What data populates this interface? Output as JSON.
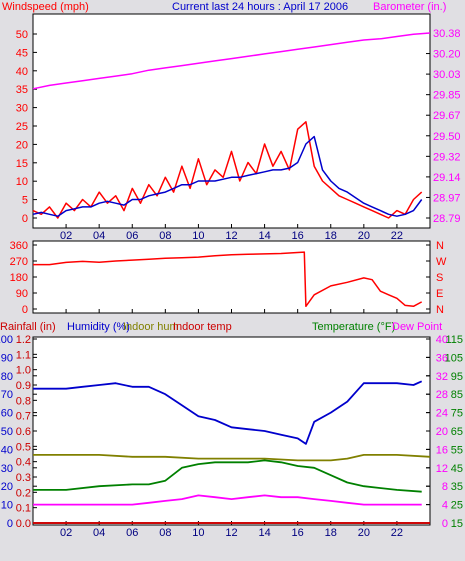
{
  "header": {
    "left_label": "Windspeed (mph)",
    "title": "Current last 24 hours : April 17 2006",
    "right_label": "Barometer (in.)"
  },
  "bottom_header": {
    "rainfall": "Rainfall (in)",
    "humidity": "Humidity (%)",
    "indoor_hum": "Indoor hum",
    "indoor_temp": "Indoor temp",
    "temperature": "Temperature (°F)",
    "dew_point": "Dew Point"
  },
  "colors": {
    "background": "#e0dfe3",
    "plot_bg": "#ffffff",
    "wind_gust": "#ff0000",
    "wind_avg": "#0000cc",
    "barometer": "#ff00ff",
    "direction": "#ff0000",
    "humidity": "#0000cc",
    "indoor_hum": "#808000",
    "indoor_temp": "#cc0000",
    "temperature": "#008000",
    "dew_point": "#ff00ff",
    "rainfall": "#cc0000"
  },
  "chart_data": [
    {
      "type": "line",
      "name": "wind-barometer",
      "x_ticks": [
        "02",
        "04",
        "06",
        "08",
        "10",
        "12",
        "14",
        "16",
        "18",
        "20",
        "22"
      ],
      "xlim": [
        0,
        24
      ],
      "left_axis": {
        "label": "Windspeed (mph)",
        "ylim": [
          0,
          50
        ],
        "ticks": [
          "0",
          "5",
          "10",
          "15",
          "20",
          "25",
          "30",
          "35",
          "40",
          "45",
          "50"
        ]
      },
      "right_axis": {
        "label": "Barometer (in.)",
        "ylim": [
          28.79,
          30.38
        ],
        "ticks": [
          "28.79",
          "28.97",
          "29.14",
          "29.32",
          "29.50",
          "29.67",
          "29.85",
          "30.03",
          "30.20",
          "30.38"
        ]
      },
      "series": [
        {
          "name": "Windspeed (mph)",
          "axis": "left",
          "color": "#ff0000",
          "x": [
            0,
            0.5,
            1,
            1.5,
            2,
            2.5,
            3,
            3.5,
            4,
            4.5,
            5,
            5.5,
            6,
            6.5,
            7,
            7.5,
            8,
            8.5,
            9,
            9.5,
            10,
            10.5,
            11,
            11.5,
            12,
            12.5,
            13,
            13.5,
            14,
            14.5,
            15,
            15.5,
            16,
            16.5,
            17,
            17.5,
            18,
            18.5,
            19,
            19.5,
            20,
            20.5,
            21,
            21.5,
            22,
            22.5,
            23,
            23.5
          ],
          "y": [
            2,
            1,
            3,
            0,
            4,
            2,
            5,
            3,
            7,
            4,
            6,
            2,
            8,
            4,
            9,
            6,
            11,
            7,
            14,
            8,
            16,
            9,
            13,
            11,
            18,
            10,
            15,
            12,
            20,
            14,
            18,
            13,
            24,
            26,
            14,
            10,
            8,
            6,
            5,
            4,
            3,
            2,
            1,
            0,
            2,
            1,
            5,
            7
          ]
        },
        {
          "name": "Wind average",
          "axis": "left",
          "color": "#0000cc",
          "x": [
            0,
            0.5,
            1,
            1.5,
            2,
            2.5,
            3,
            3.5,
            4,
            4.5,
            5,
            5.5,
            6,
            6.5,
            7,
            7.5,
            8,
            8.5,
            9,
            9.5,
            10,
            10.5,
            11,
            11.5,
            12,
            12.5,
            13,
            13.5,
            14,
            14.5,
            15,
            15.5,
            16,
            16.5,
            17,
            17.5,
            18,
            18.5,
            19,
            19.5,
            20,
            20.5,
            21,
            21.5,
            22,
            22.5,
            23,
            23.5
          ],
          "y": [
            1,
            1.5,
            1,
            0.5,
            2,
            2.5,
            3,
            3,
            4,
            4.5,
            4,
            3.5,
            5,
            5,
            6,
            6.5,
            7,
            8,
            9,
            9,
            10,
            10,
            10,
            10.5,
            11,
            11,
            11.5,
            12,
            12.5,
            13,
            13,
            13.5,
            15,
            20,
            22,
            13,
            10,
            8,
            7,
            5.5,
            4,
            3,
            2,
            1,
            0.5,
            1,
            2,
            5
          ]
        },
        {
          "name": "Barometer (in.)",
          "axis": "right",
          "color": "#ff00ff",
          "x": [
            0,
            1,
            2,
            3,
            4,
            5,
            6,
            7,
            8,
            9,
            10,
            11,
            12,
            13,
            14,
            15,
            16,
            17,
            18,
            19,
            20,
            21,
            22,
            23,
            24
          ],
          "y": [
            29.9,
            29.93,
            29.95,
            29.97,
            29.99,
            30.01,
            30.03,
            30.06,
            30.08,
            30.1,
            30.12,
            30.14,
            30.16,
            30.18,
            30.2,
            30.22,
            30.24,
            30.26,
            30.28,
            30.3,
            30.32,
            30.33,
            30.35,
            30.37,
            30.38
          ]
        }
      ]
    },
    {
      "type": "line",
      "name": "wind-direction",
      "xlim": [
        0,
        24
      ],
      "left_axis": {
        "ylim": [
          0,
          360
        ],
        "ticks": [
          "0",
          "90",
          "180",
          "270",
          "360"
        ]
      },
      "right_axis": {
        "ticks": [
          "N",
          "E",
          "S",
          "W",
          "N"
        ]
      },
      "series": [
        {
          "name": "Wind direction",
          "color": "#ff0000",
          "x": [
            0,
            1,
            2,
            3,
            4,
            5,
            6,
            7,
            8,
            9,
            10,
            11,
            12,
            13,
            14,
            15,
            16,
            16.4,
            16.5,
            17,
            18,
            19,
            20,
            20.5,
            21,
            21.5,
            22,
            22.5,
            23,
            23.5
          ],
          "y": [
            250,
            250,
            262,
            268,
            263,
            270,
            275,
            280,
            285,
            288,
            292,
            300,
            305,
            308,
            310,
            312,
            318,
            320,
            15,
            80,
            130,
            150,
            175,
            165,
            100,
            80,
            60,
            20,
            15,
            40
          ]
        }
      ]
    },
    {
      "type": "line",
      "name": "humidity-temperature",
      "xlim": [
        0,
        24
      ],
      "axes": {
        "rainfall": {
          "label": "Rainfall (in)",
          "ylim": [
            0,
            1.2
          ],
          "ticks": [
            "0.0",
            "0.1",
            "0.2",
            "0.3",
            "0.4",
            "0.5",
            "0.6",
            "0.7",
            "0.8",
            "0.9",
            "1.0",
            "1.1",
            "1.2"
          ]
        },
        "humidity": {
          "label": "Humidity (%)",
          "ylim": [
            0,
            100
          ],
          "ticks": [
            "0",
            "10",
            "20",
            "30",
            "40",
            "50",
            "60",
            "70",
            "80",
            "90",
            "100"
          ]
        },
        "dew_point": {
          "label": "Dew Point",
          "ylim": [
            0,
            40
          ],
          "ticks": [
            "0",
            "4",
            "8",
            "12",
            "16",
            "20",
            "24",
            "28",
            "32",
            "36",
            "40"
          ]
        },
        "temperature": {
          "label": "Temperature (°F)",
          "ylim": [
            15,
            115
          ],
          "ticks": [
            "15",
            "25",
            "35",
            "45",
            "55",
            "65",
            "75",
            "85",
            "95",
            "105",
            "115"
          ]
        }
      },
      "series": [
        {
          "name": "Humidity (%)",
          "axis": "humidity",
          "color": "#0000cc",
          "x": [
            0,
            1,
            2,
            3,
            4,
            5,
            6,
            7,
            8,
            9,
            10,
            11,
            12,
            13,
            14,
            15,
            16,
            16.5,
            17,
            18,
            19,
            20,
            21,
            22,
            23,
            23.5
          ],
          "y": [
            73,
            73,
            73,
            74,
            75,
            76,
            74,
            74,
            70,
            64,
            58,
            56,
            52,
            51,
            50,
            48,
            46,
            43,
            55,
            60,
            66,
            76,
            76,
            76,
            75,
            77
          ]
        },
        {
          "name": "Indoor hum",
          "axis": "humidity",
          "color": "#808000",
          "x": [
            0,
            2,
            4,
            6,
            8,
            10,
            12,
            14,
            16,
            18,
            19,
            20,
            22,
            24
          ],
          "y": [
            37,
            37,
            37,
            36,
            36,
            35,
            35,
            35,
            34,
            34,
            35,
            37,
            37,
            36
          ]
        },
        {
          "name": "Temperature (°F)",
          "axis": "humidity",
          "color": "#008000",
          "x": [
            0,
            2,
            4,
            6,
            7,
            8,
            9,
            10,
            11,
            12,
            13,
            14,
            15,
            16,
            17,
            18,
            19,
            20,
            22,
            23.5
          ],
          "y": [
            18,
            18,
            20,
            21,
            21,
            23,
            30,
            32,
            33,
            33,
            33,
            34,
            33,
            31,
            30,
            26,
            22,
            20,
            18,
            17
          ]
        },
        {
          "name": "Dew Point",
          "axis": "humidity",
          "color": "#ff00ff",
          "x": [
            0,
            2,
            4,
            6,
            7,
            8,
            9,
            10,
            11,
            12,
            13,
            14,
            15,
            16,
            17,
            18,
            19,
            20,
            21,
            22,
            23.5
          ],
          "y": [
            10,
            10,
            10,
            10,
            11,
            12,
            13,
            15,
            14,
            13,
            14,
            15,
            14,
            14,
            13,
            12,
            11,
            10,
            10,
            10,
            10
          ]
        },
        {
          "name": "Indoor temp",
          "axis": "humidity",
          "color": "#cc0000",
          "x": [
            0,
            24
          ],
          "y": [
            0,
            0
          ]
        },
        {
          "name": "Rainfall (in)",
          "axis": "rainfall",
          "color": "#cc0000",
          "x": [
            0,
            24
          ],
          "y": [
            0,
            0
          ]
        }
      ]
    }
  ]
}
